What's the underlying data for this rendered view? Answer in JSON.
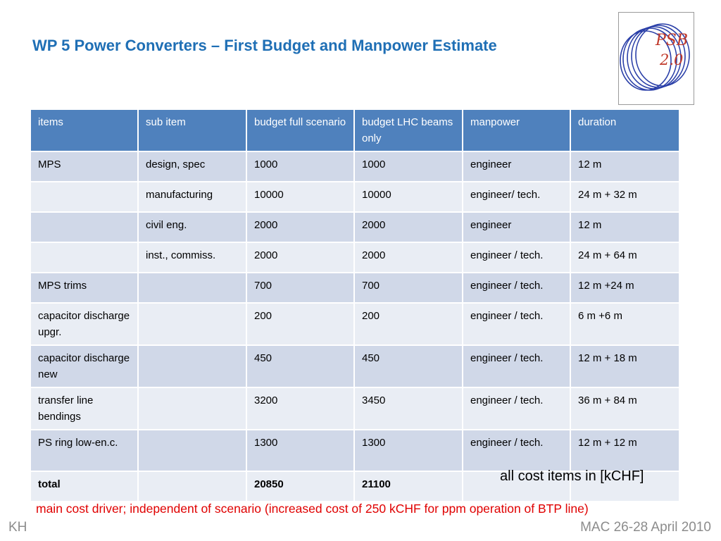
{
  "slide": {
    "title": "WP 5 Power Converters – First Budget and Manpower Estimate",
    "logo_text_line1": "PSB",
    "logo_text_line2": "2.0"
  },
  "table": {
    "headers": [
      "items",
      "sub item",
      "budget full scenario",
      "budget LHC beams only",
      "manpower",
      "duration"
    ],
    "rows": [
      {
        "item": "MPS",
        "sub_item": "design, spec",
        "budget_full": "1000",
        "budget_lhc": "1000",
        "manpower": "engineer",
        "duration": "12 m"
      },
      {
        "item": "",
        "sub_item": "manufacturing",
        "budget_full": "10000",
        "budget_lhc": "10000",
        "manpower": "engineer/ tech.",
        "duration": "24 m + 32 m"
      },
      {
        "item": "",
        "sub_item": "civil eng.",
        "budget_full": "2000",
        "budget_lhc": "2000",
        "manpower": "engineer",
        "duration": "12 m"
      },
      {
        "item": "",
        "sub_item": "inst., commiss.",
        "budget_full": "2000",
        "budget_lhc": "2000",
        "manpower": "engineer / tech.",
        "duration": "24 m + 64 m"
      },
      {
        "item": "MPS trims",
        "sub_item": "",
        "budget_full": "700",
        "budget_lhc": "700",
        "manpower": "engineer / tech.",
        "duration": "12 m +24 m"
      },
      {
        "item": "capacitor discharge upgr.",
        "sub_item": "",
        "budget_full": "200",
        "budget_lhc": "200",
        "manpower": "engineer / tech.",
        "duration": "6 m +6 m"
      },
      {
        "item": "capacitor discharge new",
        "sub_item": "",
        "budget_full": "450",
        "budget_lhc": "450",
        "manpower": "engineer / tech.",
        "duration": "12 m + 18 m"
      },
      {
        "item": "transfer line bendings",
        "sub_item": "",
        "budget_full": "3200",
        "budget_lhc": "3450",
        "manpower": "engineer / tech.",
        "duration": "36 m + 84 m"
      },
      {
        "item": "PS ring low-en.c.",
        "sub_item": "",
        "budget_full": "1300",
        "budget_lhc": "1300",
        "manpower": "engineer / tech.",
        "duration": "12 m + 12 m"
      },
      {
        "item": "total",
        "sub_item": "",
        "budget_full": "20850",
        "budget_lhc": "21100",
        "manpower": "",
        "duration": ""
      }
    ]
  },
  "notes": {
    "cost_units": "all cost items in [kCHF]",
    "main_cost_driver": "main cost driver; independent of scenario (increased cost of 250 kCHF for ppm operation of BTP line)"
  },
  "footer": {
    "left": "KH",
    "right": "MAC 26-28 April 2010"
  },
  "colors": {
    "title": "#1f6fb5",
    "header_bg": "#4f81bd",
    "row_dark": "#d0d8e8",
    "row_light": "#e9edf4",
    "driver_text": "#e00000",
    "footer_text": "#8c8c8c"
  }
}
